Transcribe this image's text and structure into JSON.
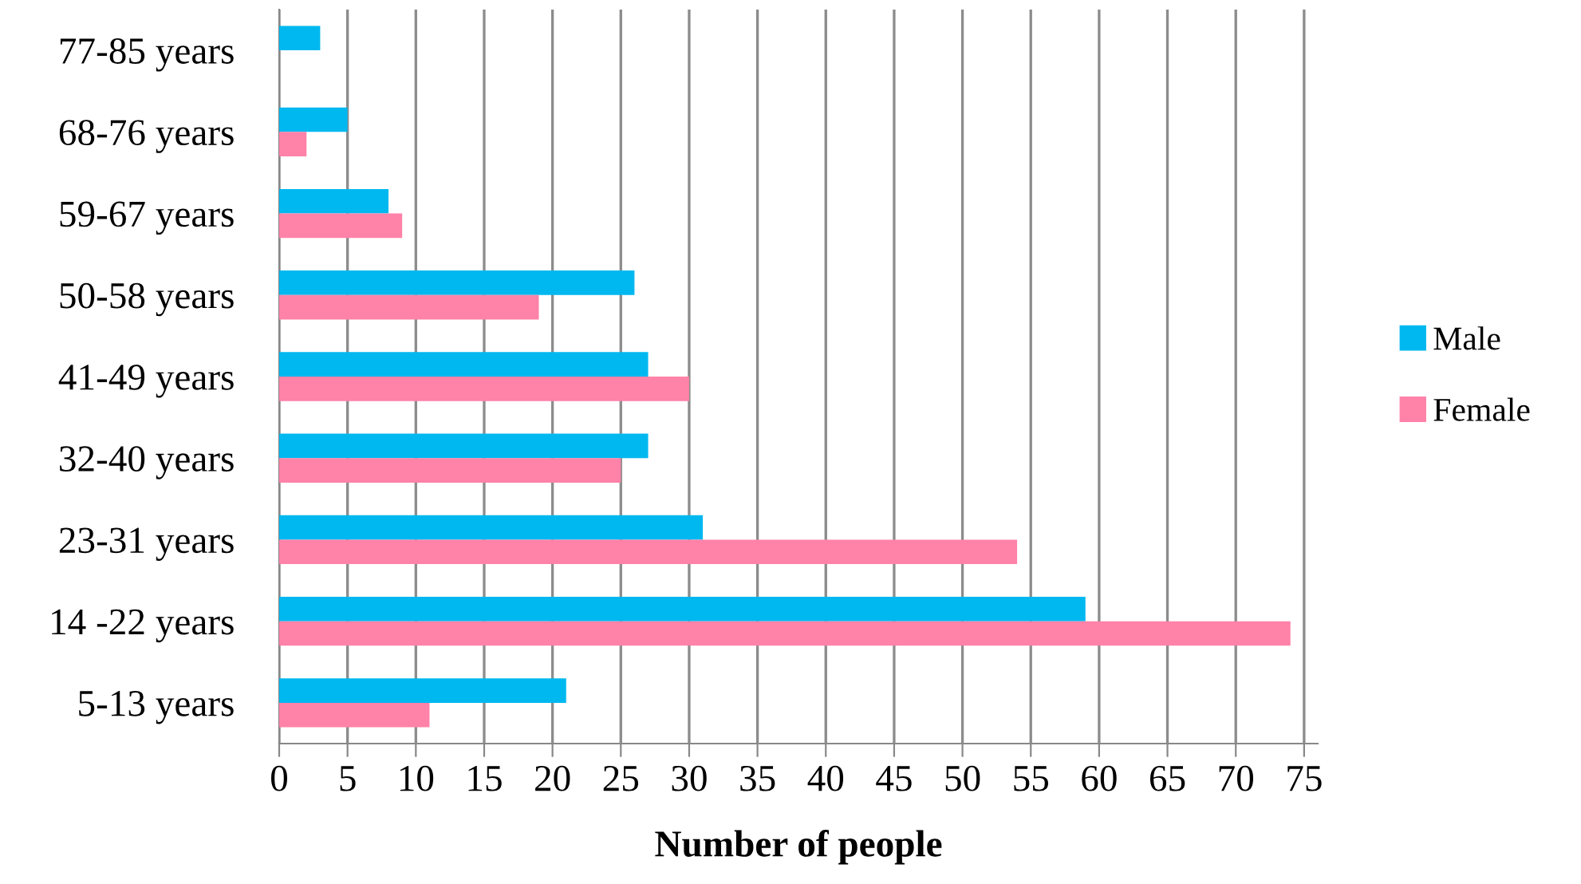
{
  "chart_data": {
    "type": "bar",
    "orientation": "horizontal",
    "xlabel": "Number of people",
    "categories": [
      "77-85 years",
      "68-76 years",
      "59-67 years",
      "50-58 years",
      "41-49 years",
      "32-40 years",
      "23-31 years",
      "14 -22 years",
      "5-13 years"
    ],
    "series": [
      {
        "name": "Male",
        "color": "#00b8f0",
        "values": [
          3,
          5,
          8,
          26,
          27,
          27,
          31,
          59,
          21
        ]
      },
      {
        "name": "Female",
        "color": "#ff82a8",
        "values": [
          0,
          2,
          9,
          19,
          30,
          25,
          54,
          74,
          11
        ]
      }
    ],
    "xlim": [
      0,
      76
    ],
    "xticks": [
      0,
      5,
      10,
      15,
      20,
      25,
      30,
      35,
      40,
      45,
      50,
      55,
      60,
      65,
      70,
      75
    ],
    "grid": "x",
    "legend": "right"
  }
}
